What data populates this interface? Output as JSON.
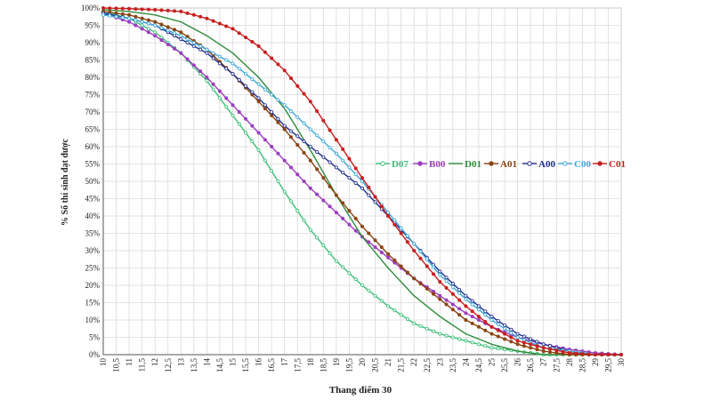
{
  "chart_data": {
    "type": "line",
    "title": "",
    "xlabel": "Thang điểm 30",
    "ylabel": "% Số thí sinh đạt được",
    "xlim": [
      10,
      30
    ],
    "ylim": [
      0,
      100
    ],
    "x_step": 0.25,
    "x_ticks": [
      10,
      10.5,
      11,
      11.5,
      12,
      12.5,
      13,
      13.5,
      14,
      14.5,
      15,
      15.5,
      16,
      16.5,
      17,
      17.5,
      18,
      18.5,
      19,
      19.5,
      20,
      20.5,
      21,
      21.5,
      22,
      22.5,
      23,
      23.5,
      24,
      24.5,
      25,
      25.5,
      26,
      26.5,
      27,
      27.5,
      28,
      28.5,
      29,
      29.5,
      30
    ],
    "x_tick_labels": [
      "10",
      "10,5",
      "11",
      "11,5",
      "12",
      "12,5",
      "13",
      "13,5",
      "14",
      "14,5",
      "15",
      "15,5",
      "16",
      "16,5",
      "17",
      "17,5",
      "18",
      "18,5",
      "19",
      "19,5",
      "20",
      "20,5",
      "21",
      "21,5",
      "22",
      "22,5",
      "23",
      "23,5",
      "24",
      "24,5",
      "25",
      "25,5",
      "26",
      "26,5",
      "27",
      "27,5",
      "28",
      "28,5",
      "29",
      "29,5",
      "30"
    ],
    "y_ticks": [
      0,
      5,
      10,
      15,
      20,
      25,
      30,
      35,
      40,
      45,
      50,
      55,
      60,
      65,
      70,
      75,
      80,
      85,
      90,
      95,
      100
    ],
    "y_tick_labels": [
      "0%",
      "5%",
      "10%",
      "15%",
      "20%",
      "25%",
      "30%",
      "35%",
      "40%",
      "45%",
      "50%",
      "55%",
      "60%",
      "65%",
      "70%",
      "75%",
      "80%",
      "85%",
      "90%",
      "95%",
      "100%"
    ],
    "grid": true,
    "legend_position": "center-right",
    "series": [
      {
        "name": "D07",
        "color": "#3dbf7a",
        "marker": "open-circle",
        "points": [
          [
            10,
            99
          ],
          [
            11,
            97
          ],
          [
            12,
            93
          ],
          [
            13,
            87
          ],
          [
            14,
            79
          ],
          [
            15,
            69
          ],
          [
            16,
            59
          ],
          [
            17,
            47
          ],
          [
            18,
            36
          ],
          [
            19,
            27
          ],
          [
            20,
            20
          ],
          [
            21,
            14
          ],
          [
            22,
            9
          ],
          [
            23,
            6
          ],
          [
            24,
            4
          ],
          [
            25,
            2
          ],
          [
            26,
            1
          ],
          [
            27,
            0
          ],
          [
            30,
            0
          ]
        ]
      },
      {
        "name": "B00",
        "color": "#9b3dbf",
        "marker": "filled-circle",
        "points": [
          [
            10,
            98.5
          ],
          [
            11,
            96
          ],
          [
            12,
            92
          ],
          [
            13,
            87
          ],
          [
            14,
            80
          ],
          [
            15,
            72
          ],
          [
            16,
            64
          ],
          [
            17,
            56
          ],
          [
            18,
            48
          ],
          [
            19,
            41
          ],
          [
            20,
            34
          ],
          [
            21,
            28
          ],
          [
            22,
            22
          ],
          [
            23,
            17
          ],
          [
            24,
            12
          ],
          [
            25,
            8
          ],
          [
            26,
            5
          ],
          [
            27,
            3
          ],
          [
            28,
            1.5
          ],
          [
            29,
            0.5
          ],
          [
            30,
            0
          ]
        ]
      },
      {
        "name": "D01",
        "color": "#2e8b3a",
        "marker": "none",
        "points": [
          [
            10,
            99.5
          ],
          [
            11,
            99
          ],
          [
            12,
            98
          ],
          [
            13,
            96
          ],
          [
            14,
            92
          ],
          [
            15,
            87
          ],
          [
            16,
            80
          ],
          [
            17,
            71
          ],
          [
            18,
            59
          ],
          [
            19,
            46
          ],
          [
            20,
            34
          ],
          [
            21,
            25
          ],
          [
            22,
            17
          ],
          [
            23,
            11
          ],
          [
            24,
            6
          ],
          [
            25,
            3
          ],
          [
            26,
            1
          ],
          [
            27,
            0
          ],
          [
            30,
            0
          ]
        ]
      },
      {
        "name": "A01",
        "color": "#8b4513",
        "marker": "filled-circle",
        "points": [
          [
            10,
            99
          ],
          [
            11,
            98
          ],
          [
            12,
            96
          ],
          [
            13,
            93
          ],
          [
            14,
            88
          ],
          [
            15,
            81
          ],
          [
            16,
            73
          ],
          [
            17,
            65
          ],
          [
            18,
            56
          ],
          [
            19,
            46
          ],
          [
            20,
            37
          ],
          [
            21,
            29
          ],
          [
            22,
            22
          ],
          [
            23,
            16
          ],
          [
            24,
            10
          ],
          [
            25,
            6
          ],
          [
            26,
            3
          ],
          [
            27,
            1
          ],
          [
            28,
            0
          ],
          [
            30,
            0
          ]
        ]
      },
      {
        "name": "A00",
        "color": "#1f2f8b",
        "marker": "open-circle",
        "points": [
          [
            10,
            98.5
          ],
          [
            11,
            97
          ],
          [
            12,
            95
          ],
          [
            13,
            91
          ],
          [
            14,
            87
          ],
          [
            15,
            81
          ],
          [
            16,
            74
          ],
          [
            17,
            66
          ],
          [
            18,
            60
          ],
          [
            19,
            54
          ],
          [
            20,
            48
          ],
          [
            21,
            40
          ],
          [
            22,
            32
          ],
          [
            23,
            24
          ],
          [
            24,
            17
          ],
          [
            25,
            11
          ],
          [
            26,
            6
          ],
          [
            27,
            3
          ],
          [
            28,
            1
          ],
          [
            29,
            0
          ],
          [
            30,
            0
          ]
        ]
      },
      {
        "name": "C00",
        "color": "#3ba8d8",
        "marker": "open-circle",
        "points": [
          [
            10,
            98
          ],
          [
            11,
            97
          ],
          [
            12,
            95
          ],
          [
            13,
            92
          ],
          [
            14,
            88
          ],
          [
            15,
            84
          ],
          [
            16,
            78
          ],
          [
            17,
            72
          ],
          [
            18,
            65
          ],
          [
            19,
            58
          ],
          [
            20,
            50
          ],
          [
            21,
            41
          ],
          [
            22,
            32
          ],
          [
            23,
            23
          ],
          [
            24,
            16
          ],
          [
            25,
            10
          ],
          [
            26,
            5
          ],
          [
            27,
            2
          ],
          [
            28,
            1
          ],
          [
            29,
            0
          ],
          [
            30,
            0
          ]
        ]
      },
      {
        "name": "C01",
        "color": "#c81e1e",
        "marker": "filled-circle",
        "points": [
          [
            10,
            100
          ],
          [
            11,
            99.8
          ],
          [
            12,
            99.5
          ],
          [
            13,
            99
          ],
          [
            14,
            97
          ],
          [
            15,
            94
          ],
          [
            16,
            89
          ],
          [
            17,
            82
          ],
          [
            18,
            73
          ],
          [
            19,
            62
          ],
          [
            20,
            51
          ],
          [
            21,
            40
          ],
          [
            22,
            30
          ],
          [
            23,
            21
          ],
          [
            24,
            14
          ],
          [
            25,
            8
          ],
          [
            26,
            4
          ],
          [
            27,
            2
          ],
          [
            28,
            0.5
          ],
          [
            29,
            0
          ],
          [
            30,
            0
          ]
        ]
      }
    ]
  }
}
